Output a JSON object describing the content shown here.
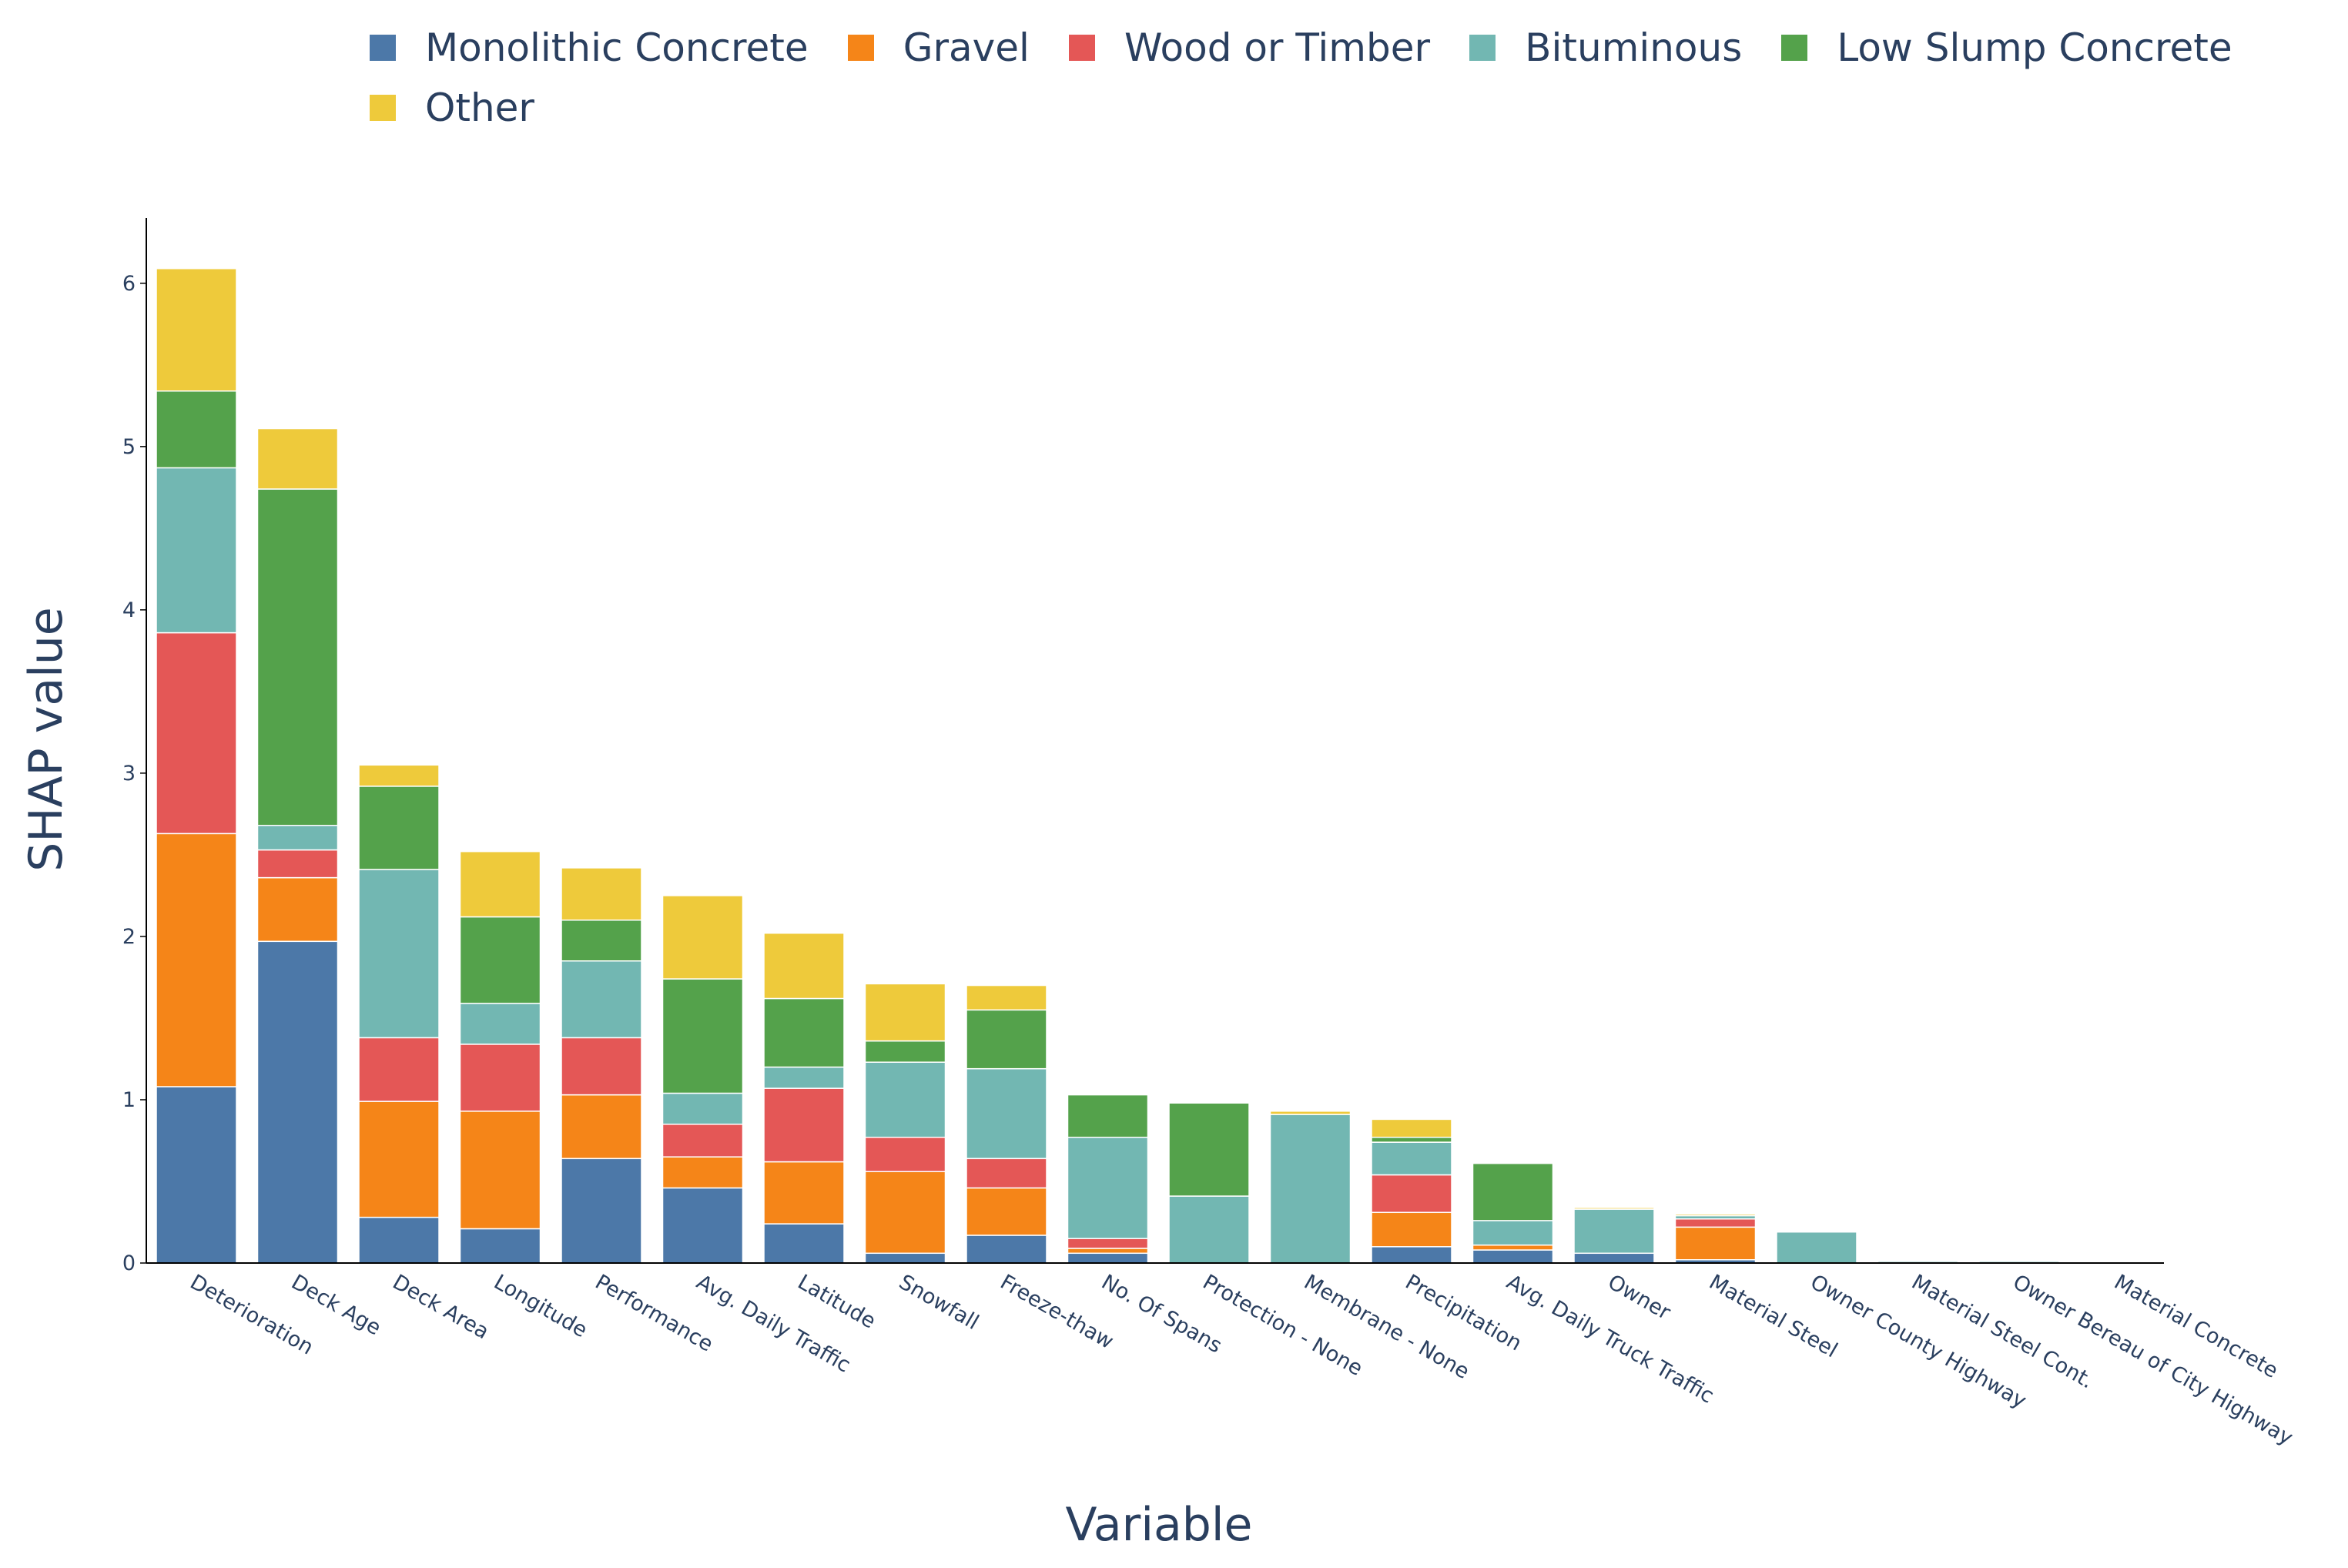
{
  "chart_data": {
    "type": "bar",
    "stacked": true,
    "xlabel": "Variable",
    "ylabel": "SHAP value",
    "ylim": [
      0,
      6.4
    ],
    "yticks": [
      0,
      1,
      2,
      3,
      4,
      5,
      6
    ],
    "categories": [
      "Deterioration",
      "Deck Age",
      "Deck Area",
      "Longitude",
      "Performance",
      "Avg. Daily Traffic",
      "Latitude",
      "Snowfall",
      "Freeze-thaw",
      "No. Of Spans",
      "Protection - None",
      "Membrane - None",
      "Precipitation",
      "Avg. Daily Truck Traffic",
      "Owner",
      "Material Steel",
      "Owner County Highway",
      "Material Steel Cont.",
      "Owner Bereau of City Highway",
      "Material Concrete"
    ],
    "series": [
      {
        "name": "Monolithic Concrete",
        "color": "#4c78a8",
        "values": [
          1.08,
          1.97,
          0.28,
          0.21,
          0.64,
          0.46,
          0.24,
          0.06,
          0.17,
          0.06,
          0.0,
          0.0,
          0.1,
          0.08,
          0.06,
          0.02,
          0.0,
          0.0,
          0.0,
          0.0
        ]
      },
      {
        "name": "Gravel",
        "color": "#f58518",
        "values": [
          1.55,
          0.39,
          0.71,
          0.72,
          0.39,
          0.19,
          0.38,
          0.5,
          0.29,
          0.03,
          0.0,
          0.0,
          0.21,
          0.03,
          0.0,
          0.2,
          0.0,
          0.0,
          0.0,
          0.0
        ]
      },
      {
        "name": "Wood or Timber",
        "color": "#e45756",
        "values": [
          1.23,
          0.17,
          0.39,
          0.41,
          0.35,
          0.2,
          0.45,
          0.21,
          0.18,
          0.06,
          0.0,
          0.0,
          0.23,
          0.0,
          0.0,
          0.05,
          0.0,
          0.0,
          0.0,
          0.0
        ]
      },
      {
        "name": "Bituminous",
        "color": "#72b7b2",
        "values": [
          1.01,
          0.15,
          1.03,
          0.25,
          0.47,
          0.19,
          0.13,
          0.46,
          0.55,
          0.62,
          0.41,
          0.91,
          0.2,
          0.15,
          0.27,
          0.02,
          0.19,
          0.01,
          0.01,
          0.0
        ]
      },
      {
        "name": "Low Slump Concrete",
        "color": "#54a24b",
        "values": [
          0.47,
          2.06,
          0.51,
          0.53,
          0.25,
          0.7,
          0.42,
          0.13,
          0.36,
          0.26,
          0.57,
          0.0,
          0.03,
          0.35,
          0.0,
          0.0,
          0.0,
          0.0,
          0.0,
          0.0
        ]
      },
      {
        "name": "Other",
        "color": "#eeca3b",
        "values": [
          0.75,
          0.37,
          0.13,
          0.4,
          0.32,
          0.51,
          0.4,
          0.35,
          0.15,
          0.0,
          0.0,
          0.02,
          0.11,
          0.0,
          0.01,
          0.01,
          0.0,
          0.0,
          0.0,
          0.0
        ]
      }
    ]
  }
}
